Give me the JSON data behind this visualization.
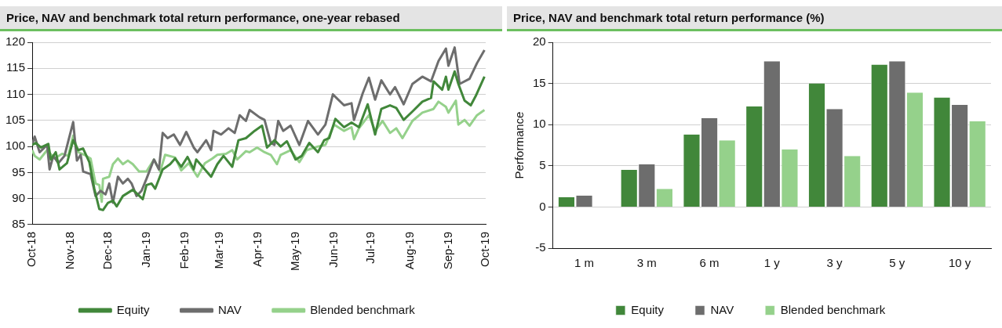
{
  "chart_data": [
    {
      "type": "line",
      "title": "Price, NAV and benchmark total return performance, one-year rebased",
      "xlim": [
        "2018-10-01",
        "2019-10-01"
      ],
      "xticks": [
        {
          "value": "2018-10-01",
          "label": "Oct-18"
        },
        {
          "value": "2018-11-01",
          "label": "Nov-18"
        },
        {
          "value": "2018-12-01",
          "label": "Dec-18"
        },
        {
          "value": "2019-01-01",
          "label": "Jan-19"
        },
        {
          "value": "2019-02-01",
          "label": "Feb-19"
        },
        {
          "value": "2019-03-01",
          "label": "Mar-19"
        },
        {
          "value": "2019-04-01",
          "label": "Apr-19"
        },
        {
          "value": "2019-05-01",
          "label": "May-19"
        },
        {
          "value": "2019-06-01",
          "label": "Jun-19"
        },
        {
          "value": "2019-07-01",
          "label": "Jul-19"
        },
        {
          "value": "2019-08-01",
          "label": "Aug-19"
        },
        {
          "value": "2019-09-01",
          "label": "Sep-19"
        },
        {
          "value": "2019-10-01",
          "label": "Oct-19"
        }
      ],
      "ylim": [
        85,
        120
      ],
      "yticks": [
        85,
        90,
        95,
        100,
        105,
        110,
        115,
        120
      ],
      "grid": "y",
      "legend": "bottom",
      "marker": "none",
      "series": [
        {
          "name": "Equity",
          "color": "#41873a",
          "x": [
            "2018-10-01",
            "2018-10-04",
            "2018-10-08",
            "2018-10-14",
            "2018-10-16",
            "2018-10-20",
            "2018-10-23",
            "2018-10-29",
            "2018-11-03",
            "2018-11-07",
            "2018-11-11",
            "2018-11-16",
            "2018-11-20",
            "2018-11-24",
            "2018-11-27",
            "2018-12-01",
            "2018-12-05",
            "2018-12-08",
            "2018-12-13",
            "2018-12-21",
            "2018-12-29",
            "2019-01-01",
            "2019-01-05",
            "2019-01-08",
            "2019-01-14",
            "2019-01-20",
            "2019-01-24",
            "2019-01-29",
            "2019-02-03",
            "2019-02-08",
            "2019-02-10",
            "2019-02-17",
            "2019-02-22",
            "2019-02-27",
            "2019-03-04",
            "2019-03-11",
            "2019-03-16",
            "2019-03-22",
            "2019-03-29",
            "2019-04-04",
            "2019-04-08",
            "2019-04-14",
            "2019-04-19",
            "2019-04-24",
            "2019-05-01",
            "2019-05-06",
            "2019-05-12",
            "2019-05-19",
            "2019-05-24",
            "2019-05-28",
            "2019-06-02",
            "2019-06-09",
            "2019-06-15",
            "2019-06-21",
            "2019-06-28",
            "2019-07-04",
            "2019-07-09",
            "2019-07-16",
            "2019-07-21",
            "2019-07-27",
            "2019-08-03",
            "2019-08-11",
            "2019-08-18",
            "2019-08-20",
            "2019-08-27",
            "2019-08-30",
            "2019-09-01",
            "2019-09-06",
            "2019-09-09",
            "2019-09-14",
            "2019-09-19",
            "2019-09-23",
            "2019-09-30"
          ],
          "values": [
            100.3,
            100.7,
            99.8,
            100.5,
            97.5,
            98.9,
            95.6,
            96.8,
            101.2,
            99.3,
            99.6,
            97,
            91.9,
            88,
            87.8,
            89.2,
            89.6,
            88.5,
            90.5,
            91.7,
            89.9,
            92.6,
            92.9,
            91.9,
            95.6,
            96.6,
            97.7,
            96.1,
            98,
            95.6,
            97.5,
            95.6,
            94.2,
            96.6,
            98.2,
            96.1,
            101.2,
            101.6,
            103,
            104,
            99.8,
            101.2,
            100,
            101,
            97.5,
            98.2,
            100.7,
            98.9,
            101.2,
            101.6,
            105.3,
            103.7,
            104.6,
            103.7,
            108.1,
            102.3,
            107.2,
            107.9,
            107.4,
            105.1,
            106.7,
            108.6,
            109.3,
            112.5,
            110.9,
            113.4,
            110.9,
            114.4,
            112,
            108.8,
            107.9,
            109.7,
            113.4
          ]
        },
        {
          "name": "NAV",
          "color": "#6d6d6d",
          "x": [
            "2018-10-01",
            "2018-10-03",
            "2018-10-07",
            "2018-10-13",
            "2018-10-15",
            "2018-10-18",
            "2018-10-22",
            "2018-10-27",
            "2018-11-03",
            "2018-11-06",
            "2018-11-09",
            "2018-11-11",
            "2018-11-17",
            "2018-11-21",
            "2018-11-25",
            "2018-11-29",
            "2018-12-02",
            "2018-12-05",
            "2018-12-09",
            "2018-12-13",
            "2018-12-17",
            "2018-12-20",
            "2018-12-24",
            "2018-12-28",
            "2019-01-01",
            "2019-01-07",
            "2019-01-11",
            "2019-01-14",
            "2019-01-18",
            "2019-01-23",
            "2019-01-28",
            "2019-02-02",
            "2019-02-08",
            "2019-02-11",
            "2019-02-18",
            "2019-02-22",
            "2019-02-24",
            "2019-03-02",
            "2019-03-08",
            "2019-03-13",
            "2019-03-17",
            "2019-03-22",
            "2019-03-25",
            "2019-04-02",
            "2019-04-06",
            "2019-04-11",
            "2019-04-14",
            "2019-04-17",
            "2019-04-21",
            "2019-04-27",
            "2019-05-04",
            "2019-05-11",
            "2019-05-19",
            "2019-05-25",
            "2019-05-31",
            "2019-06-09",
            "2019-06-15",
            "2019-06-17",
            "2019-06-24",
            "2019-06-29",
            "2019-07-04",
            "2019-07-09",
            "2019-07-16",
            "2019-07-20",
            "2019-07-27",
            "2019-08-03",
            "2019-08-11",
            "2019-08-18",
            "2019-08-24",
            "2019-08-30",
            "2019-09-01",
            "2019-09-06",
            "2019-09-10",
            "2019-09-18",
            "2019-09-24",
            "2019-09-30"
          ],
          "values": [
            100.3,
            101.9,
            98.9,
            100.3,
            95.6,
            98.2,
            96.8,
            98.2,
            104.7,
            97.3,
            98.4,
            95.2,
            94.7,
            90.5,
            91.5,
            90.8,
            92.9,
            89.2,
            94.2,
            92.9,
            93.8,
            92.9,
            90.5,
            91.5,
            93.8,
            97.5,
            95.6,
            102.6,
            101.6,
            102.3,
            100.3,
            102.8,
            99.8,
            98.9,
            101.2,
            99.3,
            103,
            102.3,
            103.5,
            102.6,
            106,
            104.9,
            107,
            105.6,
            105.1,
            100.7,
            100.3,
            104.9,
            103,
            104,
            100.3,
            104.9,
            102.3,
            104.2,
            110,
            107.9,
            108.3,
            105.1,
            110.2,
            113.2,
            109,
            112.7,
            110,
            111.4,
            108.1,
            112,
            113.4,
            112.5,
            116.4,
            118.8,
            115.5,
            119,
            112,
            113,
            116,
            118.5
          ]
        },
        {
          "name": "Blended benchmark",
          "color": "#95d18b",
          "x": [
            "2018-10-01",
            "2018-10-03",
            "2018-10-07",
            "2018-10-13",
            "2018-10-19",
            "2018-10-25",
            "2018-10-30",
            "2018-11-03",
            "2018-11-07",
            "2018-11-12",
            "2018-11-17",
            "2018-11-21",
            "2018-11-24",
            "2018-11-26",
            "2018-11-27",
            "2018-12-02",
            "2018-12-05",
            "2018-12-09",
            "2018-12-13",
            "2018-12-17",
            "2018-12-21",
            "2018-12-26",
            "2019-01-01",
            "2019-01-07",
            "2019-01-12",
            "2019-01-16",
            "2019-01-24",
            "2019-01-29",
            "2019-02-04",
            "2019-02-11",
            "2019-02-17",
            "2019-02-23",
            "2019-02-27",
            "2019-03-06",
            "2019-03-11",
            "2019-03-15",
            "2019-03-22",
            "2019-03-25",
            "2019-03-31",
            "2019-04-06",
            "2019-04-11",
            "2019-04-16",
            "2019-04-19",
            "2019-04-27",
            "2019-05-04",
            "2019-05-10",
            "2019-05-19",
            "2019-05-25",
            "2019-06-01",
            "2019-06-09",
            "2019-06-15",
            "2019-06-17",
            "2019-06-21",
            "2019-06-29",
            "2019-07-04",
            "2019-07-10",
            "2019-07-16",
            "2019-07-21",
            "2019-07-26",
            "2019-08-03",
            "2019-08-11",
            "2019-08-20",
            "2019-08-24",
            "2019-08-30",
            "2019-09-01",
            "2019-09-07",
            "2019-09-09",
            "2019-09-14",
            "2019-09-18",
            "2019-09-24",
            "2019-09-30"
          ],
          "values": [
            99.3,
            98.2,
            97.5,
            99.3,
            97.7,
            98.6,
            98.2,
            102.1,
            98.9,
            98.4,
            97.7,
            92.9,
            92.6,
            89.4,
            93.8,
            94.2,
            96.6,
            97.7,
            96.6,
            97.3,
            96.6,
            95.2,
            95.2,
            97.5,
            95.2,
            98.4,
            97.9,
            95.4,
            96.8,
            94.2,
            96.8,
            97.7,
            98.4,
            98.6,
            99.3,
            97.5,
            99.1,
            98.9,
            99.8,
            98.9,
            98.4,
            96.6,
            98.4,
            99.3,
            97,
            99.3,
            100,
            100.3,
            104.2,
            103,
            103.7,
            101.4,
            103.5,
            106,
            103,
            104.9,
            102.6,
            103.5,
            101.6,
            104.9,
            106.5,
            107.2,
            108.6,
            107.6,
            106.5,
            108.8,
            104.2,
            105.1,
            104,
            106,
            107
          ]
        }
      ]
    },
    {
      "type": "bar",
      "title": "Price, NAV and benchmark total return performance (%)",
      "ylabel": "Performance",
      "categories": [
        "1 m",
        "3 m",
        "6 m",
        "1 y",
        "3 y",
        "5 y",
        "10 y"
      ],
      "ylim": [
        -5,
        20
      ],
      "yticks": [
        -5,
        0,
        5,
        10,
        15,
        20
      ],
      "grid": "y",
      "legend": "bottom",
      "series": [
        {
          "name": "Equity",
          "color": "#41873a",
          "values": [
            1.2,
            4.5,
            8.8,
            12.2,
            15.0,
            17.3,
            13.3
          ]
        },
        {
          "name": "NAV",
          "color": "#6d6d6d",
          "values": [
            1.4,
            5.2,
            10.8,
            17.7,
            11.9,
            17.7,
            12.4
          ]
        },
        {
          "name": "Blended benchmark",
          "color": "#95d18b",
          "values": [
            null,
            2.2,
            8.1,
            7.0,
            6.2,
            13.9,
            10.4
          ]
        }
      ]
    }
  ]
}
